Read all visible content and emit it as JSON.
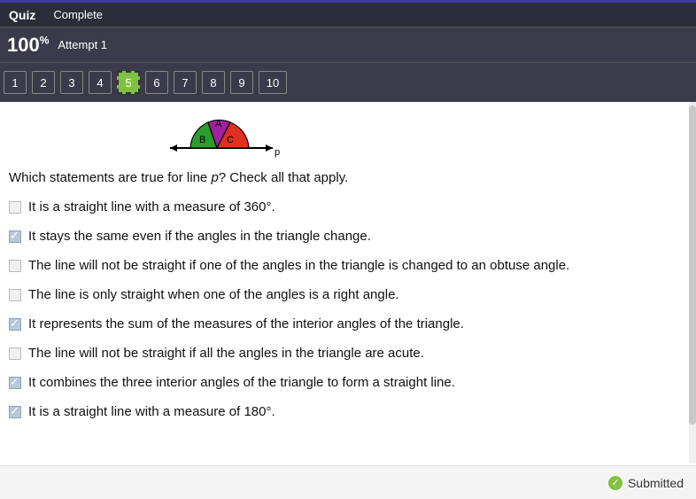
{
  "header": {
    "quiz_label": "Quiz",
    "status": "Complete",
    "score": "100",
    "pct": "%",
    "attempt": "Attempt 1"
  },
  "nav": {
    "items": [
      "1",
      "2",
      "3",
      "4",
      "5",
      "6",
      "7",
      "8",
      "9",
      "10"
    ],
    "active": "5"
  },
  "diagram": {
    "label_A": "A",
    "label_B": "B",
    "label_C": "C",
    "label_p": "p",
    "colors": {
      "A": "#a020a0",
      "B": "#2a9d2a",
      "C": "#e03020",
      "stroke": "#000000"
    }
  },
  "question": {
    "prompt_pre": "Which statements are true for line ",
    "var": "p",
    "prompt_post": "? Check all that apply."
  },
  "options": [
    {
      "text": "It is a straight line with a measure of 360°.",
      "checked": false
    },
    {
      "text": "It stays the same even if the angles in the triangle change.",
      "checked": true
    },
    {
      "text": "The line will not be straight if one of the angles in the triangle is changed to an obtuse angle.",
      "checked": false
    },
    {
      "text": "The line is only straight when one of the angles is a right angle.",
      "checked": false
    },
    {
      "text": "It represents the sum of the measures of the interior angles of the triangle.",
      "checked": true
    },
    {
      "text": "The line will not be straight if all the angles in the triangle are acute.",
      "checked": false
    },
    {
      "text": "It combines the three interior angles of the triangle to form a straight line.",
      "checked": true
    },
    {
      "text": "It is a straight line with a measure of 180°.",
      "checked": true
    }
  ],
  "footer": {
    "submitted": "Submitted"
  }
}
